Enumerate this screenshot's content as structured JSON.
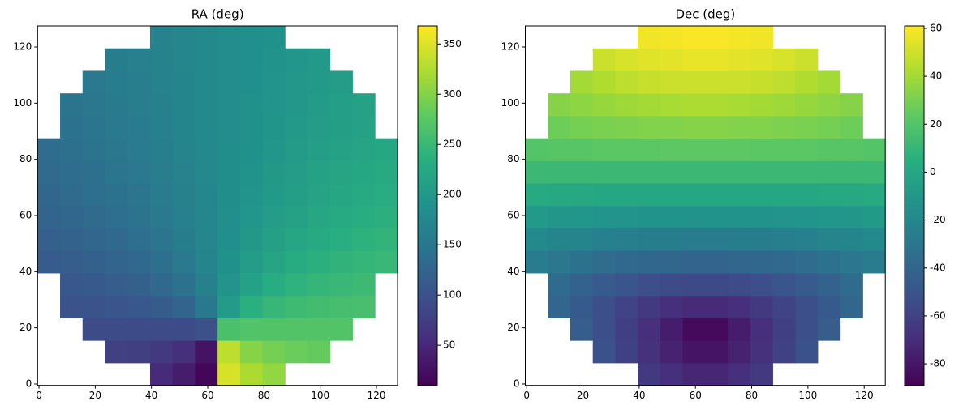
{
  "chart_data": [
    {
      "type": "heatmap",
      "title": "RA (deg)",
      "colormap": "viridis",
      "x": [
        3.5,
        11.5,
        19.5,
        27.5,
        35.5,
        43.5,
        51.5,
        59.5,
        67.5,
        75.5,
        83.5,
        91.5,
        99.5,
        107.5,
        115.5,
        123.5
      ],
      "y": [
        3.5,
        11.5,
        19.5,
        27.5,
        35.5,
        43.5,
        51.5,
        59.5,
        67.5,
        75.5,
        83.5,
        91.5,
        99.5,
        107.5,
        115.5,
        123.5
      ],
      "values": [
        [
          null,
          null,
          null,
          null,
          null,
          52,
          38,
          15,
          346,
          322,
          308,
          null,
          null,
          null,
          null,
          null
        ],
        [
          null,
          null,
          null,
          78,
          75,
          69,
          58,
          28,
          332,
          302,
          291,
          285,
          282,
          null,
          null,
          null
        ],
        [
          null,
          null,
          91,
          91,
          91,
          91,
          92,
          97,
          263,
          268,
          269,
          269,
          269,
          269,
          null,
          null
        ],
        [
          null,
          99,
          101,
          103,
          107,
          113,
          125,
          155,
          205,
          235,
          247,
          253,
          257,
          259,
          261,
          null
        ],
        [
          null,
          108,
          111,
          115,
          121,
          130,
          144,
          166,
          194,
          216,
          231,
          240,
          245,
          249,
          252,
          null
        ],
        [
          112,
          115,
          119,
          124,
          131,
          141,
          154,
          171,
          189,
          206,
          219,
          229,
          236,
          241,
          245,
          248
        ],
        [
          118,
          122,
          127,
          132,
          139,
          148,
          160,
          173,
          187,
          200,
          212,
          221,
          228,
          234,
          238,
          242
        ],
        [
          124,
          128,
          133,
          138,
          145,
          154,
          164,
          174,
          186,
          197,
          206,
          215,
          222,
          227,
          232,
          236
        ],
        [
          129,
          133,
          138,
          143,
          150,
          158,
          166,
          175,
          185,
          194,
          202,
          210,
          217,
          222,
          227,
          231
        ],
        [
          133,
          137,
          142,
          148,
          154,
          161,
          168,
          176,
          184,
          192,
          200,
          206,
          213,
          218,
          223,
          227
        ],
        [
          137,
          141,
          146,
          151,
          157,
          163,
          170,
          176,
          184,
          191,
          197,
          204,
          209,
          214,
          219,
          223
        ],
        [
          null,
          144,
          149,
          154,
          159,
          165,
          171,
          177,
          183,
          189,
          195,
          201,
          206,
          211,
          216,
          null
        ],
        [
          null,
          147,
          151,
          156,
          161,
          166,
          172,
          177,
          183,
          189,
          194,
          199,
          204,
          209,
          213,
          null
        ],
        [
          null,
          null,
          154,
          158,
          162,
          167,
          172,
          177,
          183,
          188,
          193,
          198,
          202,
          206,
          null,
          null
        ],
        [
          null,
          null,
          null,
          160,
          164,
          168,
          173,
          178,
          182,
          187,
          192,
          196,
          201,
          null,
          null,
          null
        ],
        [
          null,
          null,
          null,
          null,
          null,
          169,
          173,
          178,
          182,
          187,
          191,
          null,
          null,
          null,
          null,
          null
        ]
      ],
      "xlim": [
        -0.5,
        127.5
      ],
      "ylim": [
        -0.5,
        127.5
      ],
      "xticks": [
        0,
        20,
        40,
        60,
        80,
        100,
        120
      ],
      "yticks": [
        0,
        20,
        40,
        60,
        80,
        100,
        120
      ],
      "clim": [
        10,
        368
      ],
      "cticks": [
        50,
        100,
        150,
        200,
        250,
        300,
        350
      ]
    },
    {
      "type": "heatmap",
      "title": "Dec (deg)",
      "colormap": "viridis",
      "x": [
        3.5,
        11.5,
        19.5,
        27.5,
        35.5,
        43.5,
        51.5,
        59.5,
        67.5,
        75.5,
        83.5,
        91.5,
        99.5,
        107.5,
        115.5,
        123.5
      ],
      "y": [
        3.5,
        11.5,
        19.5,
        27.5,
        35.5,
        43.5,
        51.5,
        59.5,
        67.5,
        75.5,
        83.5,
        91.5,
        99.5,
        107.5,
        115.5,
        123.5
      ],
      "values": [
        [
          null,
          null,
          null,
          null,
          null,
          -64,
          -69,
          -73,
          -73,
          -69,
          -64,
          null,
          null,
          null,
          null,
          null
        ],
        [
          null,
          null,
          null,
          -52,
          -60,
          -68,
          -75,
          -81,
          -81,
          -75,
          -68,
          -60,
          -52,
          null,
          null,
          null
        ],
        [
          null,
          null,
          -45,
          -53,
          -61,
          -69,
          -77,
          -85,
          -85,
          -77,
          -69,
          -61,
          -53,
          -45,
          null,
          null
        ],
        [
          null,
          -40,
          -47,
          -53,
          -59,
          -64,
          -69,
          -71,
          -71,
          -69,
          -64,
          -59,
          -53,
          -47,
          -40,
          null
        ],
        [
          null,
          -37,
          -42,
          -46,
          -50,
          -53,
          -55,
          -56,
          -56,
          -55,
          -53,
          -50,
          -46,
          -42,
          -37,
          null
        ],
        [
          -27,
          -30,
          -33,
          -36,
          -38,
          -39,
          -40,
          -41,
          -41,
          -40,
          -39,
          -38,
          -36,
          -33,
          -30,
          -27
        ],
        [
          -19,
          -21,
          -22,
          -24,
          -25,
          -26,
          -26,
          -27,
          -27,
          -26,
          -26,
          -25,
          -24,
          -22,
          -21,
          -19
        ],
        [
          -9,
          -10,
          -11,
          -12,
          -12,
          -13,
          -13,
          -13,
          -13,
          -13,
          -13,
          -12,
          -12,
          -11,
          -10,
          -9
        ],
        [
          2,
          1,
          1,
          0,
          0,
          0,
          0,
          0,
          0,
          0,
          0,
          0,
          0,
          1,
          1,
          2
        ],
        [
          12,
          12,
          12,
          12,
          12,
          12,
          12,
          12,
          12,
          12,
          12,
          12,
          12,
          12,
          12,
          12
        ],
        [
          20,
          21,
          21,
          22,
          22,
          22,
          23,
          23,
          23,
          23,
          22,
          22,
          22,
          21,
          21,
          20
        ],
        [
          null,
          27,
          29,
          30,
          31,
          32,
          32,
          33,
          33,
          32,
          32,
          31,
          30,
          29,
          27,
          null
        ],
        [
          null,
          33,
          35,
          37,
          39,
          40,
          41,
          42,
          42,
          41,
          40,
          39,
          37,
          35,
          33,
          null
        ],
        [
          null,
          null,
          40,
          43,
          46,
          48,
          49,
          49,
          49,
          49,
          48,
          46,
          43,
          40,
          null,
          null
        ],
        [
          null,
          null,
          null,
          49,
          52,
          54,
          55,
          56,
          56,
          55,
          54,
          52,
          49,
          null,
          null,
          null
        ],
        [
          null,
          null,
          null,
          null,
          null,
          58,
          59,
          60,
          60,
          59,
          58,
          null,
          null,
          null,
          null,
          null
        ]
      ],
      "xlim": [
        -0.5,
        127.5
      ],
      "ylim": [
        -0.5,
        127.5
      ],
      "xticks": [
        0,
        20,
        40,
        60,
        80,
        100,
        120
      ],
      "yticks": [
        0,
        20,
        40,
        60,
        80,
        100,
        120
      ],
      "clim": [
        -89,
        61
      ],
      "cticks": [
        -80,
        -60,
        -40,
        -20,
        0,
        20,
        40,
        60
      ]
    }
  ]
}
